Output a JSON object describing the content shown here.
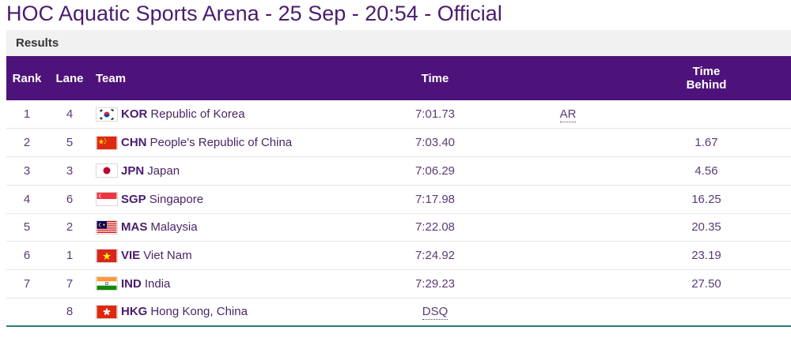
{
  "page": {
    "title": "HOC Aquatic Sports Arena - 25 Sep - 20:54 - Official"
  },
  "results": {
    "label": "Results"
  },
  "table": {
    "headers": {
      "rank": "Rank",
      "lane": "Lane",
      "team": "Team",
      "time": "Time",
      "behind_line1": "Time",
      "behind_line2": "Behind"
    },
    "rows": [
      {
        "rank": "1",
        "lane": "4",
        "code": "KOR",
        "name": "Republic of Korea",
        "time": "7:01.73",
        "record": "AR",
        "behind": "",
        "flag": "kor-flag-icon"
      },
      {
        "rank": "2",
        "lane": "5",
        "code": "CHN",
        "name": "People's Republic of China",
        "time": "7:03.40",
        "record": "",
        "behind": "1.67",
        "flag": "chn-flag-icon"
      },
      {
        "rank": "3",
        "lane": "3",
        "code": "JPN",
        "name": "Japan",
        "time": "7:06.29",
        "record": "",
        "behind": "4.56",
        "flag": "jpn-flag-icon"
      },
      {
        "rank": "4",
        "lane": "6",
        "code": "SGP",
        "name": "Singapore",
        "time": "7:17.98",
        "record": "",
        "behind": "16.25",
        "flag": "sgp-flag-icon"
      },
      {
        "rank": "5",
        "lane": "2",
        "code": "MAS",
        "name": "Malaysia",
        "time": "7:22.08",
        "record": "",
        "behind": "20.35",
        "flag": "mas-flag-icon"
      },
      {
        "rank": "6",
        "lane": "1",
        "code": "VIE",
        "name": "Viet Nam",
        "time": "7:24.92",
        "record": "",
        "behind": "23.19",
        "flag": "vie-flag-icon"
      },
      {
        "rank": "7",
        "lane": "7",
        "code": "IND",
        "name": "India",
        "time": "7:29.23",
        "record": "",
        "behind": "27.50",
        "flag": "ind-flag-icon"
      },
      {
        "rank": "",
        "lane": "8",
        "code": "HKG",
        "name": "Hong Kong, China",
        "time": "DSQ",
        "record": "",
        "behind": "",
        "flag": "hkg-flag-icon"
      }
    ]
  },
  "colors": {
    "header_bg": "#4e137a",
    "title": "#4b1c6e",
    "bar_bg": "#f1f1f1"
  }
}
